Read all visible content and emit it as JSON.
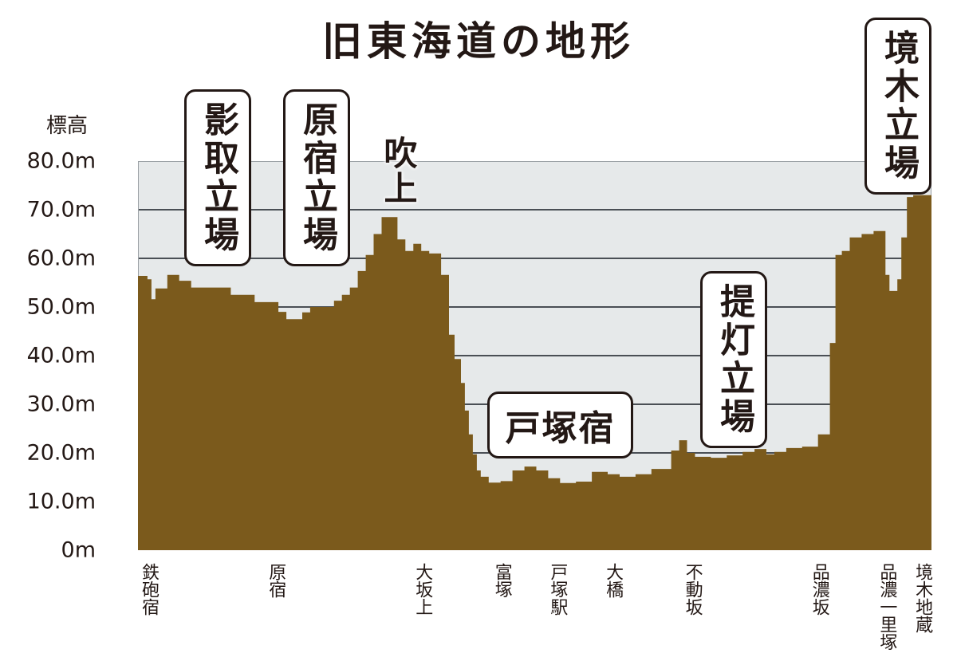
{
  "title": "旧東海道の地形",
  "chart_data": {
    "type": "area",
    "title": "旧東海道の地形",
    "ylabel": "標高",
    "xlabel": "",
    "ylim": [
      0,
      80
    ],
    "y_ticks": [
      "80.0m",
      "70.0m",
      "60.0m",
      "50.0m",
      "40.0m",
      "30.0m",
      "20.0m",
      "10.0m",
      "0m"
    ],
    "grid": true,
    "fill_color": "#7b5a1c",
    "background_color": "#e6e9ea",
    "x_tick_labels": [
      {
        "label": "鉄砲宿",
        "pos": 0.0
      },
      {
        "label": "原宿",
        "pos": 0.16
      },
      {
        "label": "大坂上",
        "pos": 0.345
      },
      {
        "label": "富塚",
        "pos": 0.445
      },
      {
        "label": "戸塚駅",
        "pos": 0.515
      },
      {
        "label": "大橋",
        "pos": 0.585
      },
      {
        "label": "不動坂",
        "pos": 0.685
      },
      {
        "label": "品濃坂",
        "pos": 0.845
      },
      {
        "label": "品濃一里塚",
        "pos": 0.93
      },
      {
        "label": "境木地蔵",
        "pos": 0.975
      }
    ],
    "profile": {
      "x": [
        0.0,
        0.012,
        0.017,
        0.022,
        0.032,
        0.037,
        0.052,
        0.067,
        0.077,
        0.117,
        0.127,
        0.147,
        0.157,
        0.177,
        0.187,
        0.197,
        0.207,
        0.217,
        0.227,
        0.247,
        0.257,
        0.267,
        0.277,
        0.287,
        0.297,
        0.307,
        0.317,
        0.327,
        0.337,
        0.347,
        0.357,
        0.367,
        0.382,
        0.392,
        0.399,
        0.407,
        0.412,
        0.417,
        0.422,
        0.427,
        0.432,
        0.442,
        0.457,
        0.472,
        0.487,
        0.502,
        0.517,
        0.532,
        0.552,
        0.572,
        0.592,
        0.607,
        0.627,
        0.647,
        0.672,
        0.682,
        0.692,
        0.702,
        0.722,
        0.742,
        0.762,
        0.777,
        0.792,
        0.802,
        0.817,
        0.837,
        0.857,
        0.872,
        0.879,
        0.887,
        0.897,
        0.912,
        0.927,
        0.942,
        0.947,
        0.957,
        0.962,
        0.969,
        0.977,
        1.0
      ],
      "elevation": [
        56.4,
        55.7,
        51.6,
        53.8,
        53.8,
        56.6,
        55.4,
        54.0,
        54.0,
        52.5,
        52.5,
        51.0,
        51.0,
        49.0,
        47.5,
        47.5,
        48.9,
        50.0,
        50.0,
        51.3,
        52.5,
        54.0,
        57.4,
        60.7,
        65.0,
        68.5,
        68.5,
        63.9,
        61.5,
        63.0,
        61.5,
        61.0,
        56.6,
        44.3,
        39.3,
        34.4,
        28.7,
        23.8,
        19.7,
        16.4,
        15.1,
        13.9,
        14.2,
        16.4,
        17.2,
        16.4,
        14.8,
        13.8,
        14.1,
        16.1,
        15.6,
        15.1,
        15.6,
        16.7,
        20.5,
        22.6,
        20.0,
        19.2,
        19.0,
        19.5,
        20.2,
        20.8,
        19.7,
        20.2,
        21.0,
        21.3,
        23.8,
        42.6,
        60.7,
        61.5,
        64.3,
        65.0,
        65.6,
        56.6,
        53.3,
        55.7,
        64.3,
        72.6,
        73.0,
        73.0
      ]
    },
    "annotations": [
      {
        "text": "影取立場",
        "boxed": true,
        "orientation": "vertical"
      },
      {
        "text": "原宿立場",
        "boxed": true,
        "orientation": "vertical"
      },
      {
        "text": "吹上",
        "boxed": false,
        "orientation": "vertical"
      },
      {
        "text": "戸塚宿",
        "boxed": true,
        "orientation": "horizontal"
      },
      {
        "text": "提灯立場",
        "boxed": true,
        "orientation": "vertical"
      },
      {
        "text": "境木立場",
        "boxed": true,
        "orientation": "vertical"
      }
    ]
  }
}
